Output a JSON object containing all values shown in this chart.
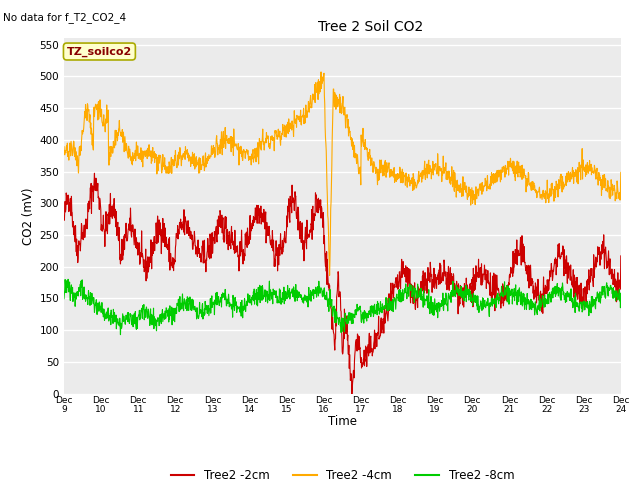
{
  "title": "Tree 2 Soil CO2",
  "subtitle": "No data for f_T2_CO2_4",
  "ylabel": "CO2 (mV)",
  "xlabel": "Time",
  "box_label": "TZ_soilco2",
  "ylim": [
    0,
    560
  ],
  "yticks": [
    0,
    50,
    100,
    150,
    200,
    250,
    300,
    350,
    400,
    450,
    500,
    550
  ],
  "x_labels": [
    "Dec 9",
    "Dec 10",
    "Dec 11",
    "Dec 12",
    "Dec 13",
    "Dec 14",
    "Dec 15",
    "Dec 16",
    "Dec 17",
    "Dec 18",
    "Dec 19",
    "Dec 20",
    "Dec 21",
    "Dec 22",
    "Dec 23",
    "Dec 24"
  ],
  "legend": [
    "Tree2 -2cm",
    "Tree2 -4cm",
    "Tree2 -8cm"
  ],
  "colors": {
    "red": "#cc0000",
    "orange": "#ffaa00",
    "green": "#00cc00"
  },
  "plot_bg": "#ebebeb"
}
